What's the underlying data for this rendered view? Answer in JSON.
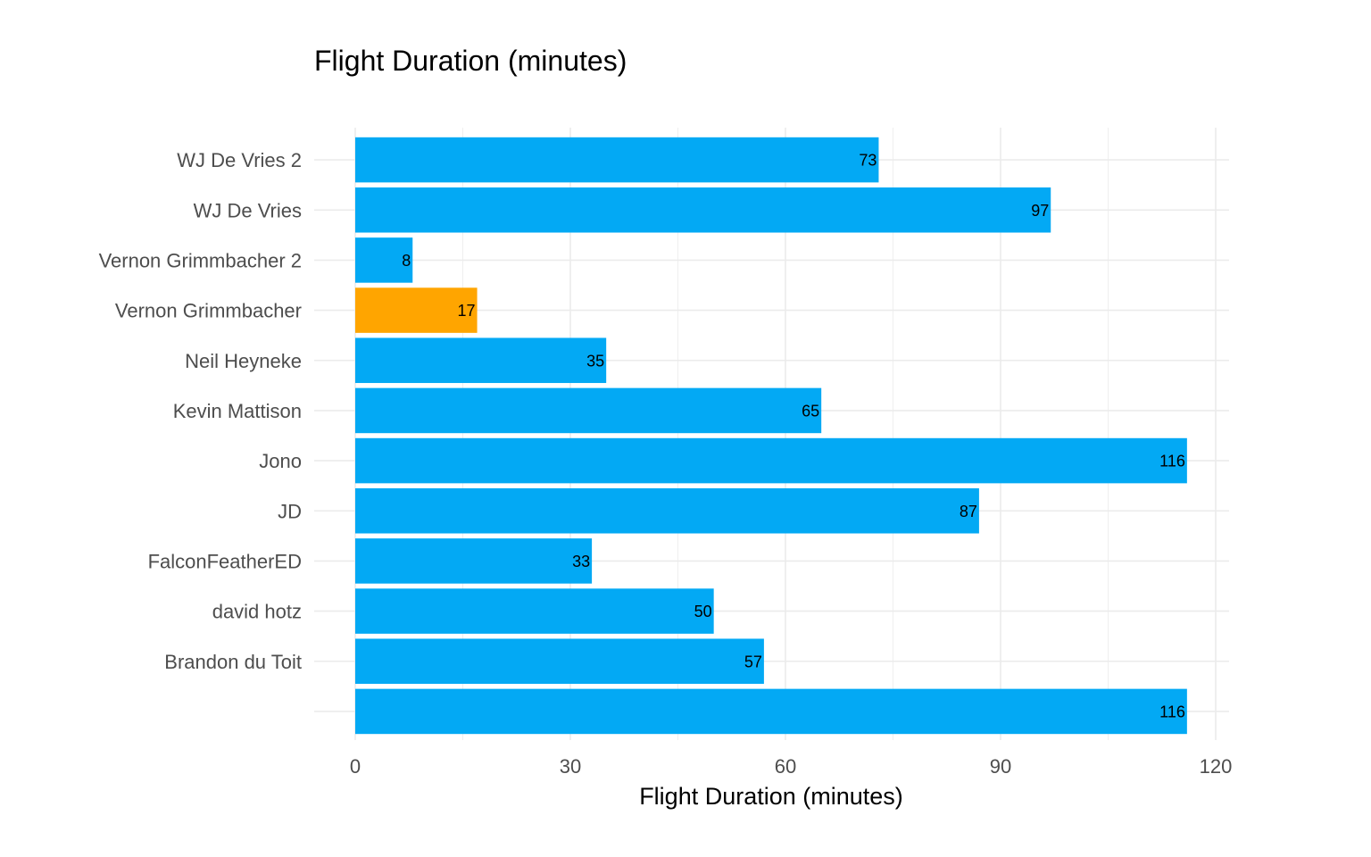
{
  "chart_data": {
    "type": "bar",
    "orientation": "horizontal",
    "title": "Flight Duration (minutes)",
    "xlabel": "Flight Duration (minutes)",
    "ylabel": "",
    "xlim": [
      0,
      120
    ],
    "x_ticks": [
      0,
      30,
      60,
      90,
      120
    ],
    "grid": true,
    "categories": [
      "WJ De Vries 2",
      "WJ De Vries",
      "Vernon Grimmbacher 2",
      "Vernon Grimmbacher",
      "Neil Heyneke",
      "Kevin Mattison",
      "Jono",
      "JD",
      "FalconFeatherED",
      "david hotz",
      "Brandon du Toit",
      ""
    ],
    "values": [
      73,
      97,
      8,
      17,
      35,
      65,
      116,
      87,
      33,
      50,
      57,
      116
    ],
    "bar_colors": [
      "#03a9f4",
      "#03a9f4",
      "#03a9f4",
      "#ffa500",
      "#03a9f4",
      "#03a9f4",
      "#03a9f4",
      "#03a9f4",
      "#03a9f4",
      "#03a9f4",
      "#03a9f4",
      "#03a9f4"
    ],
    "highlight_color": "#ffa500",
    "default_color": "#03a9f4",
    "grid_color": "#ebebeb"
  }
}
